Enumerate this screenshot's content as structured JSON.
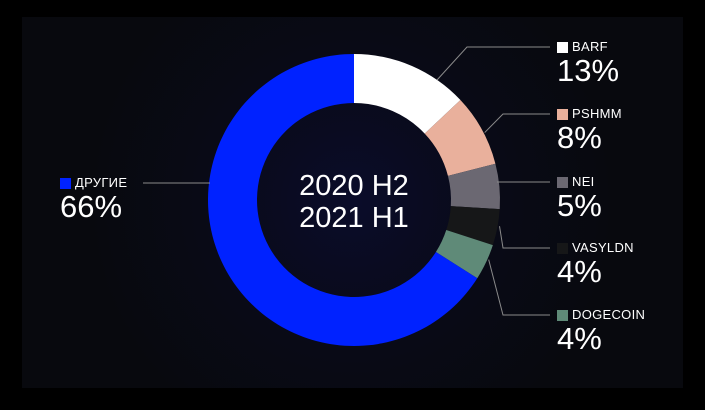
{
  "chart_data": {
    "type": "pie",
    "variant": "donut",
    "title": [
      "2020 H2",
      "2021 H1"
    ],
    "unit": "%",
    "start": "top, clockwise",
    "slices": [
      {
        "label": "BARF",
        "value": 13,
        "display": "13%",
        "color": "#ffffff"
      },
      {
        "label": "PSHMM",
        "value": 8,
        "display": "8%",
        "color": "#e9b09c"
      },
      {
        "label": "NEI",
        "value": 5,
        "display": "5%",
        "color": "#6b6872"
      },
      {
        "label": "VASYLDN",
        "value": 4,
        "display": "4%",
        "color": "#161718"
      },
      {
        "label": "DOGECOIN",
        "value": 4,
        "display": "4%",
        "color": "#5f8a78"
      },
      {
        "label": "ДРУГИЕ",
        "value": 66,
        "display": "66%",
        "color": "#0022ff"
      }
    ]
  },
  "colors": {
    "background": "#08090e",
    "frame": "#000000",
    "leader_line": "#8a8a8a"
  }
}
